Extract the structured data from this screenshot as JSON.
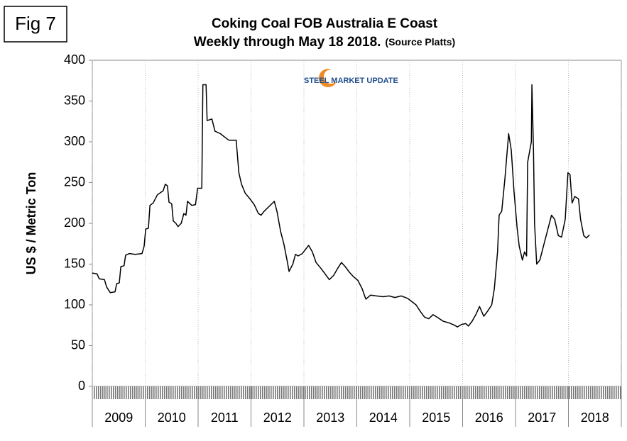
{
  "figure_label": "Fig 7",
  "logo": {
    "name": "STEEL MARKET UPDATE"
  },
  "chart_data": {
    "type": "line",
    "title": "Coking Coal FOB Australia E Coast",
    "subtitle": "Weekly through May 18 2018.",
    "source": "(Source Platts)",
    "ylabel": "US $ / Metric Ton",
    "categories": [
      "2009",
      "2010",
      "2011",
      "2012",
      "2013",
      "2014",
      "2015",
      "2016",
      "2017",
      "2018"
    ],
    "xlim": [
      2009,
      2019
    ],
    "xticks": [
      2009,
      2010,
      2011,
      2012,
      2013,
      2014,
      2015,
      2016,
      2017,
      2018,
      2019
    ],
    "ylim": [
      0,
      400
    ],
    "yticks": [
      0,
      50,
      100,
      150,
      200,
      250,
      300,
      350,
      400
    ],
    "grid": true,
    "color": "#000000",
    "x": [
      2009.0,
      2009.09,
      2009.13,
      2009.23,
      2009.27,
      2009.34,
      2009.43,
      2009.46,
      2009.51,
      2009.54,
      2009.6,
      2009.63,
      2009.7,
      2009.81,
      2009.94,
      2009.98,
      2010.01,
      2010.06,
      2010.09,
      2010.15,
      2010.23,
      2010.34,
      2010.38,
      2010.42,
      2010.45,
      2010.5,
      2010.53,
      2010.58,
      2010.62,
      2010.68,
      2010.73,
      2010.77,
      2010.8,
      2010.88,
      2010.95,
      2010.99,
      2011.07,
      2011.09,
      2011.15,
      2011.17,
      2011.26,
      2011.32,
      2011.42,
      2011.52,
      2011.58,
      2011.72,
      2011.77,
      2011.82,
      2011.89,
      2011.98,
      2012.06,
      2012.14,
      2012.19,
      2012.25,
      2012.33,
      2012.44,
      2012.49,
      2012.56,
      2012.62,
      2012.68,
      2012.72,
      2012.79,
      2012.84,
      2012.89,
      2012.97,
      2013.03,
      2013.09,
      2013.16,
      2013.23,
      2013.32,
      2013.4,
      2013.48,
      2013.56,
      2013.64,
      2013.71,
      2013.78,
      2013.86,
      2013.93,
      2014.02,
      2014.1,
      2014.17,
      2014.26,
      2014.37,
      2014.5,
      2014.61,
      2014.72,
      2014.84,
      2014.96,
      2015.04,
      2015.12,
      2015.2,
      2015.28,
      2015.36,
      2015.44,
      2015.54,
      2015.63,
      2015.74,
      2015.85,
      2015.9,
      2015.98,
      2016.06,
      2016.11,
      2016.18,
      2016.25,
      2016.32,
      2016.36,
      2016.4,
      2016.47,
      2016.55,
      2016.6,
      2016.66,
      2016.69,
      2016.74,
      2016.8,
      2016.87,
      2016.92,
      2016.97,
      2017.03,
      2017.07,
      2017.13,
      2017.17,
      2017.21,
      2017.23,
      2017.3,
      2017.31,
      2017.34,
      2017.36,
      2017.4,
      2017.46,
      2017.54,
      2017.62,
      2017.68,
      2017.74,
      2017.81,
      2017.87,
      2017.94,
      2017.99,
      2018.03,
      2018.07,
      2018.12,
      2018.19,
      2018.23,
      2018.29,
      2018.34,
      2018.4
    ],
    "values": [
      139,
      138,
      132,
      131,
      122,
      115,
      116,
      126,
      127,
      147,
      148,
      161,
      163,
      162,
      163,
      172,
      193,
      194,
      222,
      225,
      235,
      240,
      248,
      246,
      226,
      224,
      203,
      200,
      196,
      200,
      212,
      210,
      227,
      222,
      223,
      243,
      243,
      370,
      370,
      326,
      328,
      313,
      310,
      305,
      302,
      302,
      262,
      248,
      237,
      230,
      223,
      212,
      210,
      215,
      220,
      227,
      215,
      190,
      175,
      155,
      141,
      150,
      162,
      160,
      163,
      168,
      173,
      165,
      152,
      145,
      138,
      131,
      136,
      145,
      152,
      147,
      140,
      135,
      130,
      120,
      107,
      112,
      111,
      110,
      111,
      109,
      111,
      108,
      104,
      100,
      92,
      85,
      83,
      88,
      84,
      80,
      78,
      75,
      73,
      76,
      77,
      74,
      80,
      88,
      98,
      92,
      86,
      92,
      100,
      120,
      165,
      210,
      215,
      255,
      310,
      290,
      240,
      195,
      172,
      155,
      165,
      160,
      275,
      300,
      370,
      290,
      200,
      150,
      155,
      175,
      195,
      210,
      205,
      185,
      183,
      205,
      262,
      260,
      225,
      233,
      230,
      205,
      185,
      182,
      186
    ]
  }
}
